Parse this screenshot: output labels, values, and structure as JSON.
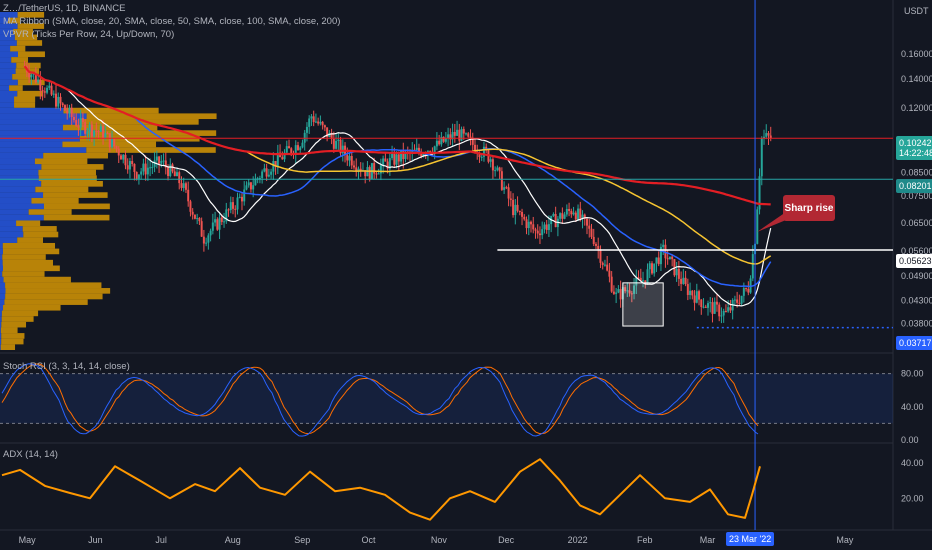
{
  "header": {
    "ticker": "Z…/TetherUS, 1D, BINANCE",
    "currency": "USDT"
  },
  "legends": {
    "ma_ribbon": "MA Ribbon (SMA, close, 20, SMA, close, 50, SMA, close, 100, SMA, close, 200)",
    "vpvr": "VPVR (Ticks Per Row, 24, Up/Down, 70)",
    "stoch_rsi": "Stoch RSI (3, 3, 14, 14, close)",
    "adx": "ADX (14, 14)"
  },
  "annotation": {
    "text": "Sharp rise"
  },
  "price_tags": {
    "last_price": "0.10242",
    "countdown": "14:22:48",
    "level_upper": "0.08201",
    "level_mid": "0.05623",
    "level_low": "0.03717"
  },
  "date_marker": "23 Mar '22",
  "colors": {
    "background": "#131722",
    "up_candle": "#26a69a",
    "down_candle": "#ef5350",
    "sma20": "#ffffff",
    "sma50": "#2962ff",
    "sma100": "#f7c531",
    "sma200": "#e31e24",
    "stoch_k": "#2962ff",
    "stoch_d": "#ff6d00",
    "adx": "#ff9800",
    "vpvr_up": "#2962ff",
    "vpvr_down": "#f0a800"
  },
  "chart_data": [
    {
      "type": "candlestick",
      "title": "",
      "x_ticks": [
        "May",
        "Jun",
        "Jul",
        "Aug",
        "Sep",
        "Oct",
        "Nov",
        "Dec",
        "2022",
        "Feb",
        "Mar",
        "23 Mar '22",
        "May"
      ],
      "y_ticks": [
        0.16,
        0.14,
        0.12,
        0.1,
        0.085,
        0.075,
        0.065,
        0.056,
        0.049,
        0.043,
        0.038
      ],
      "y_tick_labels": [
        "0.16000",
        "0.14000",
        "0.12000",
        "0.10000",
        "0.08500",
        "0.07500",
        "0.06500",
        "0.05600",
        "0.04900",
        "0.04300",
        "0.03800"
      ],
      "scale": "log",
      "ylim": [
        0.033,
        0.2
      ],
      "horizontal_levels": [
        0.102,
        0.08201,
        0.05623,
        0.03717
      ],
      "approx_close_path": [
        [
          "2021-05-01",
          0.15
        ],
        [
          "2021-05-15",
          0.125
        ],
        [
          "2021-05-25",
          0.11
        ],
        [
          "2021-06-05",
          0.105
        ],
        [
          "2021-06-20",
          0.085
        ],
        [
          "2021-07-01",
          0.09
        ],
        [
          "2021-07-10",
          0.08
        ],
        [
          "2021-07-20",
          0.06
        ],
        [
          "2021-08-01",
          0.07
        ],
        [
          "2021-08-15",
          0.085
        ],
        [
          "2021-09-01",
          0.1
        ],
        [
          "2021-09-06",
          0.115
        ],
        [
          "2021-09-20",
          0.095
        ],
        [
          "2021-10-01",
          0.085
        ],
        [
          "2021-10-15",
          0.092
        ],
        [
          "2021-11-01",
          0.098
        ],
        [
          "2021-11-10",
          0.105
        ],
        [
          "2021-11-25",
          0.092
        ],
        [
          "2021-12-05",
          0.07
        ],
        [
          "2021-12-15",
          0.062
        ],
        [
          "2022-01-01",
          0.07
        ],
        [
          "2022-01-10",
          0.06
        ],
        [
          "2022-01-20",
          0.044
        ],
        [
          "2022-02-01",
          0.048
        ],
        [
          "2022-02-10",
          0.056
        ],
        [
          "2022-02-20",
          0.046
        ],
        [
          "2022-03-01",
          0.042
        ],
        [
          "2022-03-10",
          0.04
        ],
        [
          "2022-03-20",
          0.046
        ],
        [
          "2022-03-23",
          0.06
        ],
        [
          "2022-03-26",
          0.102
        ],
        [
          "2022-03-30",
          0.1024
        ]
      ],
      "series": [
        {
          "name": "SMA 20",
          "color": "#ffffff"
        },
        {
          "name": "SMA 50",
          "color": "#2962ff"
        },
        {
          "name": "SMA 100",
          "color": "#f7c531"
        },
        {
          "name": "SMA 200",
          "color": "#e31e24"
        }
      ]
    },
    {
      "type": "line",
      "title": "Stoch RSI (3, 3, 14, 14, close)",
      "y_ticks": [
        0,
        40,
        80
      ],
      "y_tick_labels": [
        "0.00",
        "40.00",
        "80.00"
      ],
      "ylim": [
        0,
        100
      ],
      "band": [
        20,
        80
      ]
    },
    {
      "type": "line",
      "title": "ADX (14, 14)",
      "y_ticks": [
        20,
        40
      ],
      "y_tick_labels": [
        "20.00",
        "40.00"
      ],
      "ylim": [
        5,
        50
      ]
    }
  ]
}
